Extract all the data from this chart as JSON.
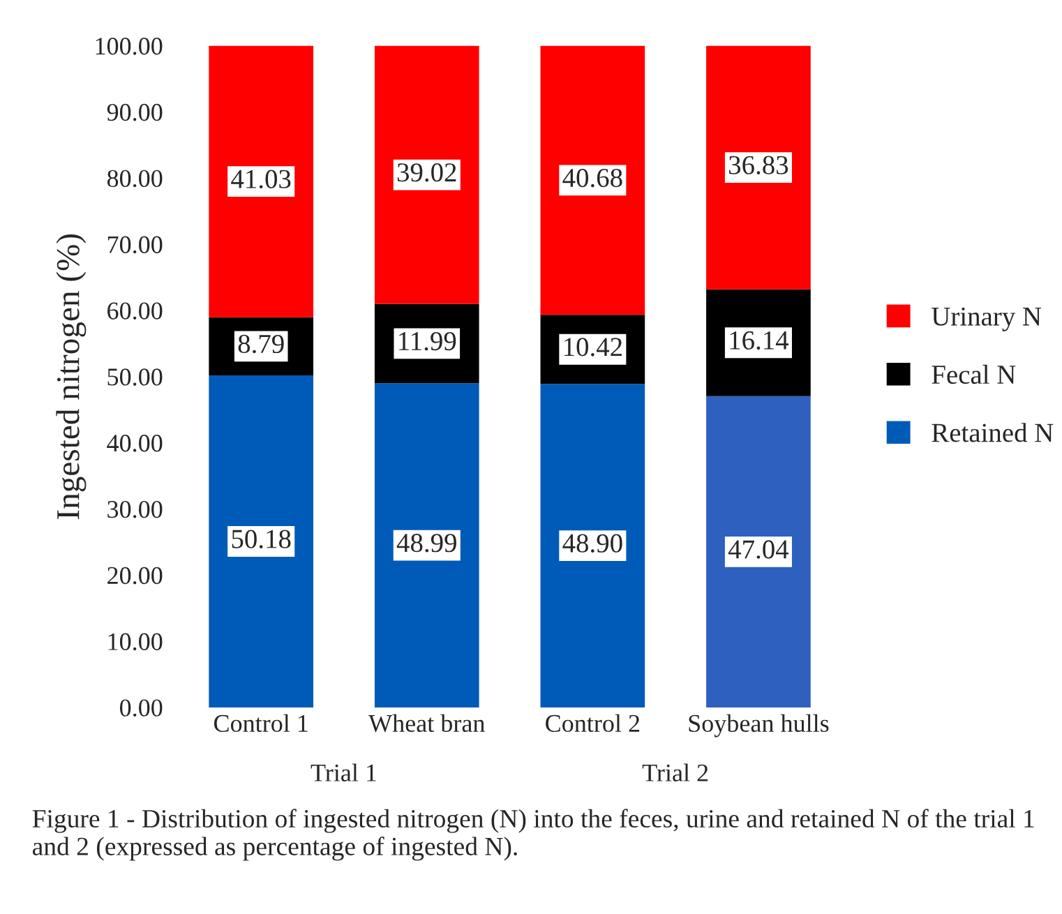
{
  "chart_data": {
    "type": "bar",
    "stacked": true,
    "ylabel": "Ingested nitrogen (%)",
    "categories": [
      "Control 1",
      "Wheat bran",
      "Control 2",
      "Soybean hulls"
    ],
    "series": [
      {
        "name": "Retained N",
        "color": "#005bb8",
        "colors": [
          "#005bb8",
          "#005bb8",
          "#005bb8",
          "#2e60bf"
        ],
        "values": [
          50.18,
          48.99,
          48.9,
          47.04
        ],
        "value_labels": [
          "50.18",
          "48.99",
          "48.90",
          "47.04"
        ]
      },
      {
        "name": "Fecal N",
        "color": "#000000",
        "values": [
          8.79,
          11.99,
          10.42,
          16.14
        ],
        "value_labels": [
          "8.79",
          "11.99",
          "10.42",
          "16.14"
        ]
      },
      {
        "name": "Urinary N",
        "color": "#ff0000",
        "values": [
          41.03,
          39.02,
          40.68,
          36.83
        ],
        "value_labels": [
          "41.03",
          "39.02",
          "40.68",
          "36.83"
        ]
      }
    ],
    "ylim": [
      0,
      100
    ],
    "yticks": [
      {
        "value": 0,
        "label": "0.00"
      },
      {
        "value": 10,
        "label": "10.00"
      },
      {
        "value": 20,
        "label": "20.00"
      },
      {
        "value": 30,
        "label": "30.00"
      },
      {
        "value": 40,
        "label": "40.00"
      },
      {
        "value": 50,
        "label": "50.00"
      },
      {
        "value": 60,
        "label": "60.00"
      },
      {
        "value": 70,
        "label": "70.00"
      },
      {
        "value": 80,
        "label": "80.00"
      },
      {
        "value": 90,
        "label": "90.00"
      },
      {
        "value": 100,
        "label": "100.00"
      }
    ],
    "legend": "right",
    "grid": false,
    "annotations": [
      "Trial 1",
      "Trial 2",
      "Figure 1 - Distribution of ingested nitrogen (N) into the feces, urine and retained N of the trial 1 and 2 (expressed as percentage of ingested N)."
    ]
  }
}
